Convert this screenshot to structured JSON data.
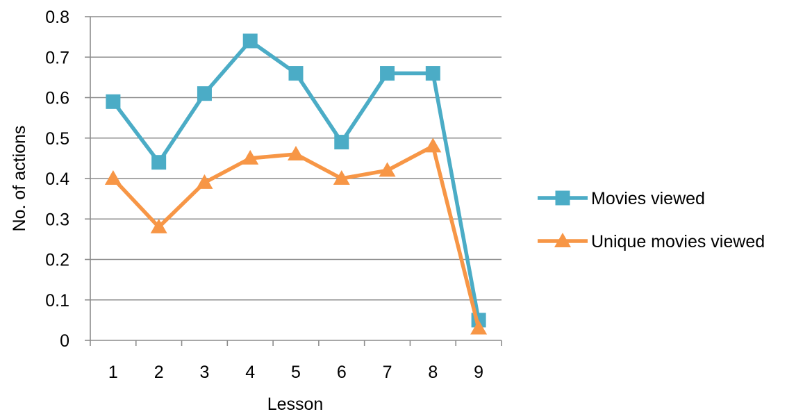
{
  "chart_data": {
    "type": "line",
    "xlabel": "Lesson",
    "ylabel": "No. of actions",
    "categories": [
      "1",
      "2",
      "3",
      "4",
      "5",
      "6",
      "7",
      "8",
      "9"
    ],
    "ylim": [
      0,
      0.8
    ],
    "yticks": [
      "0",
      "0.1",
      "0.2",
      "0.3",
      "0.4",
      "0.5",
      "0.6",
      "0.7",
      "0.8"
    ],
    "grid": true,
    "legend_position": "right",
    "series": [
      {
        "name": "Movies viewed",
        "color": "#4bacc6",
        "marker": "square",
        "values": [
          0.59,
          0.44,
          0.61,
          0.74,
          0.66,
          0.49,
          0.66,
          0.66,
          0.05
        ]
      },
      {
        "name": "Unique movies viewed",
        "color": "#f79646",
        "marker": "triangle",
        "values": [
          0.4,
          0.28,
          0.39,
          0.45,
          0.46,
          0.4,
          0.42,
          0.48,
          0.03
        ]
      }
    ]
  }
}
